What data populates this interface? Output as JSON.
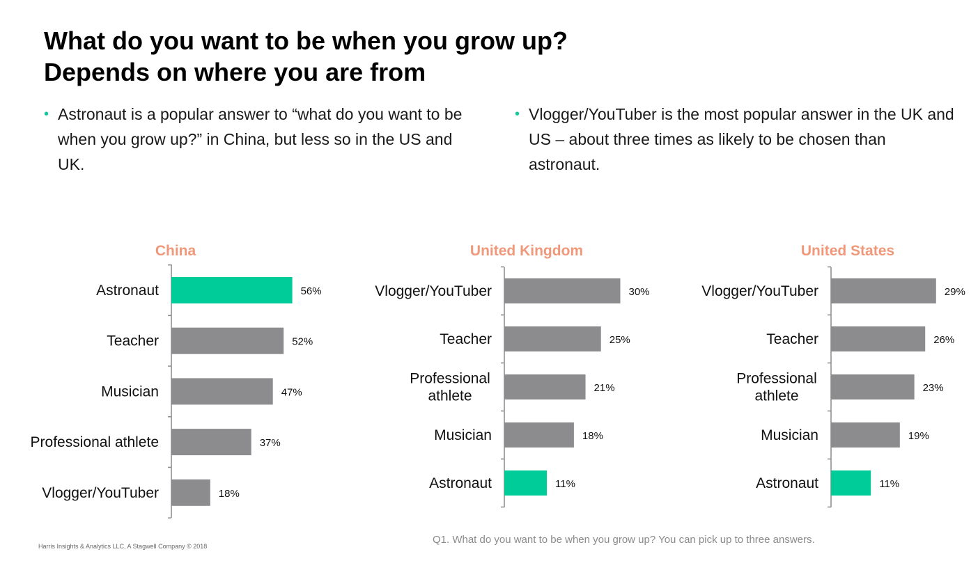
{
  "title": "What do you want to be when you grow up? Depends on where you are from",
  "bullets": [
    "Astronaut is a popular answer to “what do you want to be when you grow up?” in China, but less so in the US and UK.",
    "Vlogger/YouTuber is the most popular answer in the UK and US – about three times as likely to be chosen than astronaut."
  ],
  "colors": {
    "highlight": "#00cc99",
    "bar": "#8c8c8f",
    "panel_title": "#f0987a",
    "bullet": "#17c79a"
  },
  "chart_data": [
    {
      "type": "bar",
      "orientation": "horizontal",
      "title": "China",
      "categories": [
        "Astronaut",
        "Teacher",
        "Musician",
        "Professional athlete",
        "Vlogger/YouTuber"
      ],
      "values": [
        56,
        52,
        47,
        37,
        18
      ],
      "labels": [
        "56%",
        "52%",
        "47%",
        "37%",
        "18%"
      ],
      "highlight": "Astronaut",
      "unit": "%"
    },
    {
      "type": "bar",
      "orientation": "horizontal",
      "title": "United Kingdom",
      "categories": [
        "Vlogger/YouTuber",
        "Teacher",
        "Professional athlete",
        "Musician",
        "Astronaut"
      ],
      "values": [
        30,
        25,
        21,
        18,
        11
      ],
      "labels": [
        "30%",
        "25%",
        "21%",
        "18%",
        "11%"
      ],
      "highlight": "Astronaut",
      "unit": "%"
    },
    {
      "type": "bar",
      "orientation": "horizontal",
      "title": "United States",
      "categories": [
        "Vlogger/YouTuber",
        "Teacher",
        "Professional athlete",
        "Musician",
        "Astronaut"
      ],
      "values": [
        29,
        26,
        23,
        19,
        11
      ],
      "labels": [
        "29%",
        "26%",
        "23%",
        "19%",
        "11%"
      ],
      "highlight": "Astronaut",
      "unit": "%"
    }
  ],
  "footer": {
    "credit": "Harris Insights & Analytics LLC, A Stagwell Company © 2018",
    "question": "Q1. What do you want to be when you grow up? You can pick up to three answers."
  }
}
